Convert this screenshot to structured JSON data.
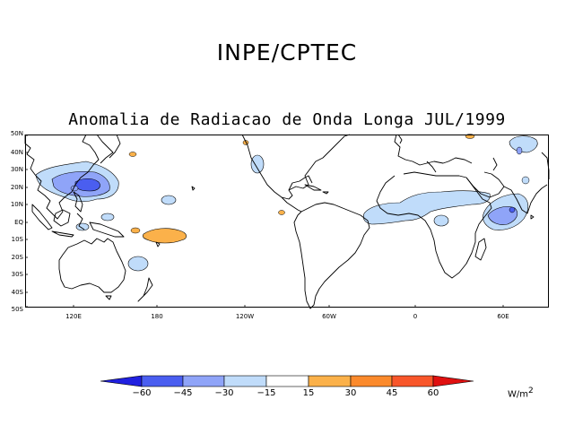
{
  "header": {
    "organization": "INPE/CPTEC",
    "map_title": "Anomalia de Radiacao de Onda Longa JUL/1999"
  },
  "axes": {
    "latitude_labels": [
      "50N",
      "40N",
      "30N",
      "20N",
      "10N",
      "EQ",
      "10S",
      "20S",
      "30S",
      "40S",
      "50S"
    ],
    "longitude_labels": [
      "120E",
      "180",
      "120W",
      "60W",
      "0",
      "60E"
    ]
  },
  "colorbar": {
    "levels": [
      "-60",
      "-45",
      "-30",
      "-15",
      "15",
      "30",
      "45",
      "60"
    ],
    "colors": [
      "#2020e0",
      "#4a5ef0",
      "#8fa4f8",
      "#c0dcfa",
      "#ffffff",
      "#fbb14a",
      "#fb8a2c",
      "#f8562a",
      "#e01010",
      "#b80000"
    ],
    "unit": "W/m",
    "unit_power": "2"
  },
  "anomaly_colors": {
    "land": "#ffffff",
    "negative_light": "#c0dcfa",
    "negative_medium": "#8fa4f8",
    "negative_strong": "#4a5ef0",
    "positive_light": "#fbb14a"
  }
}
